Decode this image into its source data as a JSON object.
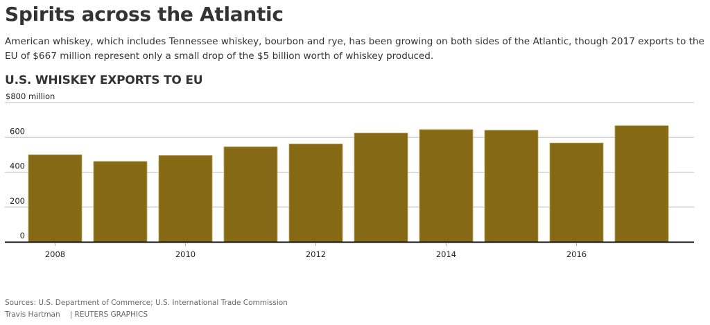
{
  "header": {
    "title": "Spirits across the Atlantic",
    "dek": "American whiskey, which includes Tennessee whiskey, bourbon and rye, has been growing on both sides of the Atlantic, though 2017 exports to the EU of $667 million represent only a small drop of the $5 billion worth of whiskey produced."
  },
  "footer": {
    "sources": "Sources: U.S. Department of Commerce; U.S. International Trade Commission",
    "byline": "Travis Hartman",
    "credit": "| REUTERS GRAPHICS"
  },
  "colors": {
    "bar": "#866914",
    "bar_edge": "#b9a55f",
    "grid": "#cccccc",
    "baseline": "#111111"
  },
  "chart_data": {
    "type": "bar",
    "title": "U.S. WHISKEY EXPORTS TO EU",
    "xlabel": "",
    "ylabel": "million",
    "unit_label": "million",
    "categories": [
      "2008",
      "2009",
      "2010",
      "2011",
      "2012",
      "2013",
      "2014",
      "2015",
      "2016",
      "2017"
    ],
    "values": [
      500,
      462,
      496,
      546,
      562,
      625,
      645,
      641,
      568,
      667
    ],
    "ylim": [
      0,
      800
    ],
    "yticks": [
      0,
      200,
      400,
      600,
      800
    ],
    "ytick_labels": [
      "0",
      "200",
      "400",
      "600",
      "$800"
    ],
    "xtick_labels": [
      "2008",
      "2010",
      "2012",
      "2014",
      "2016"
    ],
    "xtick_categories": [
      "2008",
      "2010",
      "2012",
      "2014",
      "2016"
    ],
    "grid": true,
    "legend": "none"
  }
}
